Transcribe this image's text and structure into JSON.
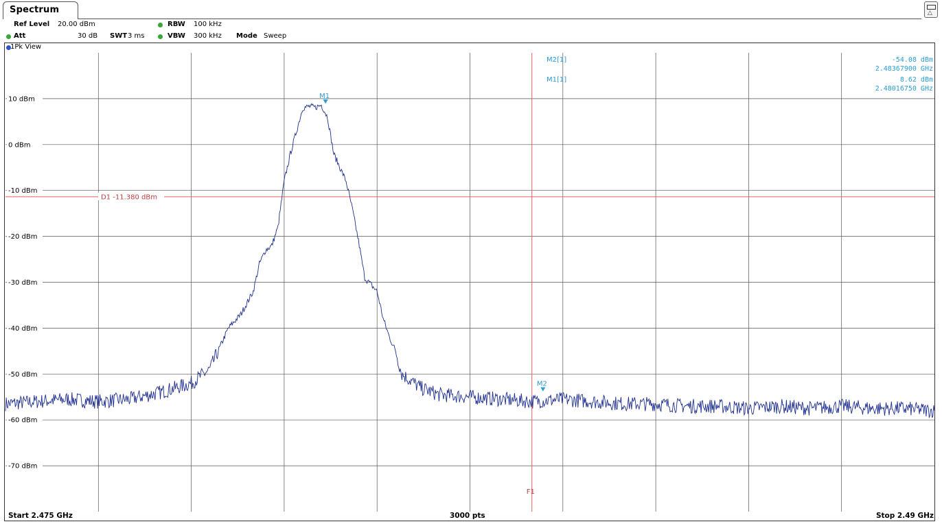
{
  "tab": {
    "title": "Spectrum"
  },
  "settings": {
    "ref_level_label": "Ref Level",
    "ref_level_value": "20.00 dBm",
    "att_label": "Att",
    "att_value": "30 dB",
    "swt_label": "SWT",
    "swt_value": "3 ms",
    "rbw_label": "RBW",
    "rbw_value": "100 kHz",
    "vbw_label": "VBW",
    "vbw_value": "300 kHz",
    "mode_label": "Mode",
    "mode_value": "Sweep"
  },
  "view_label": "1Pk View",
  "markers": {
    "m2_label": "M2[1]",
    "m2_level": "-54.08 dBm",
    "m2_freq": "2.48367900 GHz",
    "m1_label": "M1[1]",
    "m1_level": "8.62 dBm",
    "m1_freq": "2.48016750 GHz"
  },
  "footer": {
    "start": "Start 2.475 GHz",
    "points": "3000 pts",
    "stop": "Stop 2.49 GHz"
  },
  "colors": {
    "trace": "#1f2f8f",
    "display_line": "#e06060",
    "marker": "#2a9bd3",
    "grid": "#555555"
  },
  "chart_data": {
    "type": "line",
    "xlim": [
      2.475,
      2.49
    ],
    "ylim": [
      -80,
      20
    ],
    "ytick_labels": [
      "10 dBm",
      "0 dBm",
      "-10 dBm",
      "-20 dBm",
      "-30 dBm",
      "-40 dBm",
      "-50 dBm",
      "-60 dBm",
      "-70 dBm"
    ],
    "yticks": [
      10,
      0,
      -10,
      -20,
      -30,
      -40,
      -50,
      -60,
      -70
    ],
    "grid": true,
    "display_line": {
      "label": "D1  -11.380 dBm",
      "level": -11.38
    },
    "frequency_line": {
      "label": "F1",
      "x": 2.4835
    },
    "marker_points": [
      {
        "label": "M1",
        "x": 2.4801675,
        "y": 8.62
      },
      {
        "label": "M2",
        "x": 2.483679,
        "y": -54.08
      }
    ],
    "series": [
      {
        "x": [
          2.475,
          2.4755,
          2.476,
          2.4765,
          2.477,
          2.4775,
          2.478,
          2.4783,
          2.4786,
          2.4788,
          2.479,
          2.4791,
          2.4792,
          2.4793,
          2.4794,
          2.4795,
          2.4796,
          2.4797,
          2.4798,
          2.4799,
          2.48,
          2.4801,
          2.4802,
          2.4803,
          2.4804,
          2.4805,
          2.4806,
          2.4807,
          2.4808,
          2.481,
          2.4811,
          2.4812,
          2.4813,
          2.4814,
          2.4815,
          2.4817,
          2.482,
          2.4825,
          2.483,
          2.4835,
          2.484,
          2.4845,
          2.485,
          2.4855,
          2.486,
          2.4865,
          2.487,
          2.4875,
          2.488,
          2.4885,
          2.489,
          2.4895,
          2.49
        ],
        "y": [
          -56.5,
          -56,
          -55.5,
          -56,
          -55.5,
          -54,
          -52,
          -49,
          -40,
          -37,
          -32,
          -26,
          -23,
          -22,
          -18,
          -8,
          -2,
          3,
          8,
          8.3,
          8.1,
          8.62,
          6,
          -2,
          -5,
          -8,
          -14,
          -21,
          -29,
          -32,
          -38,
          -42,
          -45,
          -50,
          -51,
          -53,
          -54.5,
          -55,
          -55.5,
          -56,
          -55.5,
          -56,
          -56.5,
          -56.5,
          -57,
          -57,
          -57.5,
          -57,
          -57.5,
          -57,
          -57.5,
          -57.5,
          -58
        ]
      }
    ]
  }
}
